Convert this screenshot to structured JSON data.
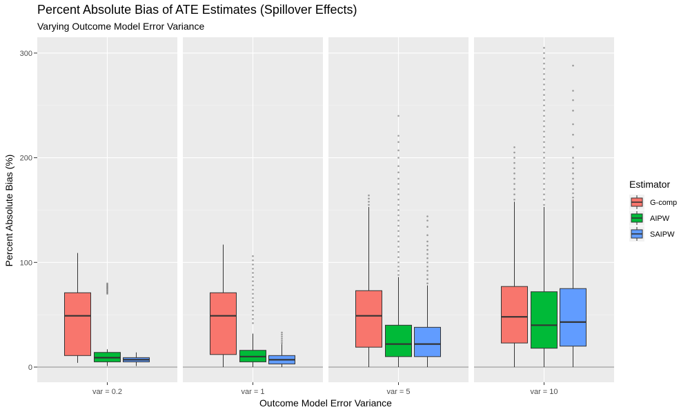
{
  "chart_data": {
    "type": "boxplot",
    "title": "Percent Absolute Bias of ATE Estimates (Spillover Effects)",
    "subtitle": "Varying Outcome Model Error Variance",
    "xlabel": "Outcome Model Error Variance",
    "ylabel": "Percent Absolute Bias (%)",
    "ylim": [
      -15,
      315
    ],
    "yticks": [
      0,
      100,
      200,
      300
    ],
    "legend_title": "Estimator",
    "legend_position": "right",
    "series": [
      {
        "name": "G-comp",
        "color": "#F8766D"
      },
      {
        "name": "AIPW",
        "color": "#00BA38"
      },
      {
        "name": "SAIPW",
        "color": "#619CFF"
      }
    ],
    "panels": [
      {
        "label": "var = 0.2",
        "boxes": [
          {
            "estimator": "G-comp",
            "lower_whisker": 4,
            "q1": 11,
            "median": 49,
            "q3": 71,
            "upper_whisker": 109,
            "outliers": []
          },
          {
            "estimator": "AIPW",
            "lower_whisker": 1,
            "q1": 5,
            "median": 9,
            "q3": 14,
            "upper_whisker": 17,
            "outliers": [
              70,
              71,
              72,
              73,
              74,
              75,
              76,
              77,
              78,
              79,
              80
            ]
          },
          {
            "estimator": "SAIPW",
            "lower_whisker": 1,
            "q1": 5,
            "median": 7,
            "q3": 9,
            "upper_whisker": 14,
            "outliers": []
          }
        ]
      },
      {
        "label": "var = 1",
        "boxes": [
          {
            "estimator": "G-comp",
            "lower_whisker": 0,
            "q1": 12,
            "median": 49,
            "q3": 71,
            "upper_whisker": 117,
            "outliers": []
          },
          {
            "estimator": "AIPW",
            "lower_whisker": 0,
            "q1": 5,
            "median": 10,
            "q3": 16,
            "upper_whisker": 32,
            "outliers": [
              42,
              46,
              50,
              54,
              58,
              62,
              66,
              70,
              74,
              78,
              82,
              86,
              90,
              94,
              98,
              102,
              106
            ]
          },
          {
            "estimator": "SAIPW",
            "lower_whisker": 0,
            "q1": 3,
            "median": 7,
            "q3": 11,
            "upper_whisker": 22,
            "outliers": [
              23,
              25,
              27,
              29,
              31,
              33
            ]
          }
        ]
      },
      {
        "label": "var = 5",
        "boxes": [
          {
            "estimator": "G-comp",
            "lower_whisker": 0,
            "q1": 19,
            "median": 49,
            "q3": 73,
            "upper_whisker": 153,
            "outliers": [
              155,
              158,
              161,
              164
            ]
          },
          {
            "estimator": "AIPW",
            "lower_whisker": 0,
            "q1": 10,
            "median": 22,
            "q3": 40,
            "upper_whisker": 86,
            "outliers": [
              88,
              92,
              96,
              100,
              105,
              110,
              115,
              120,
              125,
              130,
              135,
              140,
              145,
              150,
              155,
              160,
              165,
              170,
              175,
              180,
              186,
              192,
              200,
              207,
              215,
              221,
              240
            ]
          },
          {
            "estimator": "SAIPW",
            "lower_whisker": 0,
            "q1": 10,
            "median": 22,
            "q3": 38,
            "upper_whisker": 78,
            "outliers": [
              80,
              84,
              88,
              92,
              96,
              100,
              104,
              108,
              112,
              116,
              120,
              126,
              134,
              140,
              144
            ]
          }
        ]
      },
      {
        "label": "var = 10",
        "boxes": [
          {
            "estimator": "G-comp",
            "lower_whisker": 0,
            "q1": 23,
            "median": 48,
            "q3": 77,
            "upper_whisker": 158,
            "outliers": [
              160,
              165,
              170,
              175,
              180,
              185,
              190,
              195,
              200,
              205,
              210
            ]
          },
          {
            "estimator": "AIPW",
            "lower_whisker": 0,
            "q1": 18,
            "median": 40,
            "q3": 72,
            "upper_whisker": 153,
            "outliers": [
              155,
              160,
              165,
              170,
              175,
              180,
              185,
              190,
              195,
              200,
              205,
              210,
              215,
              220,
              225,
              230,
              235,
              240,
              245,
              250,
              255,
              260,
              265,
              270,
              275,
              280,
              285,
              290,
              295,
              300,
              305
            ]
          },
          {
            "estimator": "SAIPW",
            "lower_whisker": 0,
            "q1": 20,
            "median": 43,
            "q3": 75,
            "upper_whisker": 160,
            "outliers": [
              162,
              166,
              170,
              175,
              180,
              185,
              190,
              195,
              200,
              210,
              222,
              232,
              245,
              255,
              264,
              288
            ]
          }
        ]
      }
    ]
  }
}
